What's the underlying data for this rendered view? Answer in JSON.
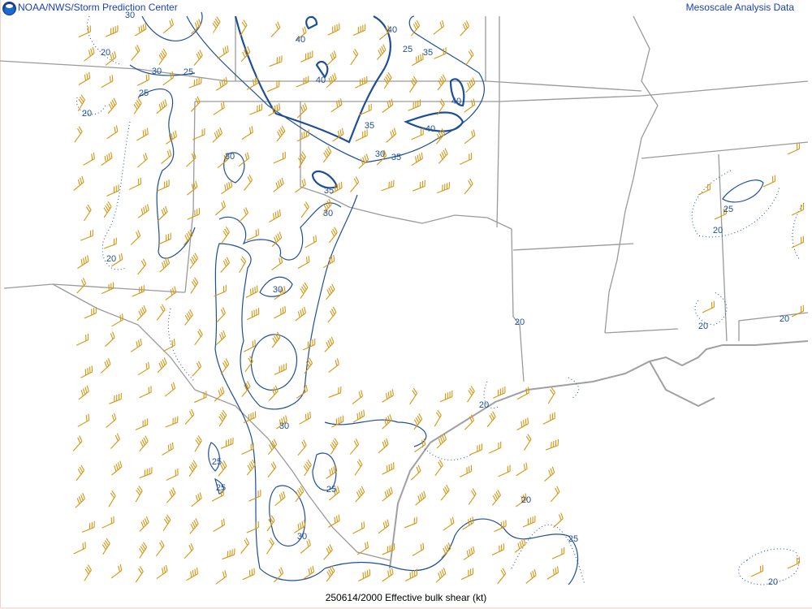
{
  "header": {
    "left_title": "NOAA/NWS/Storm Prediction Center",
    "right_title": "Mesoscale Analysis Data",
    "logo_icon": "noaa-logo"
  },
  "caption": "250614/2000 Effective bulk shear (kt)",
  "colors": {
    "contour": "#1e4f96",
    "barb": "#d4960f",
    "border": "#9a9a9a",
    "header_text": "#1a3fc0"
  },
  "contour_labels": [
    "30",
    "40",
    "40",
    "20",
    "25",
    "35",
    "25",
    "30",
    "40",
    "20",
    "25",
    "40",
    "35",
    "40",
    "35",
    "30",
    "35",
    "30",
    "25",
    "20",
    "30",
    "20",
    "30",
    "20",
    "20",
    "20",
    "20",
    "30",
    "25",
    "25",
    "25",
    "20",
    "30",
    "25",
    "20"
  ]
}
